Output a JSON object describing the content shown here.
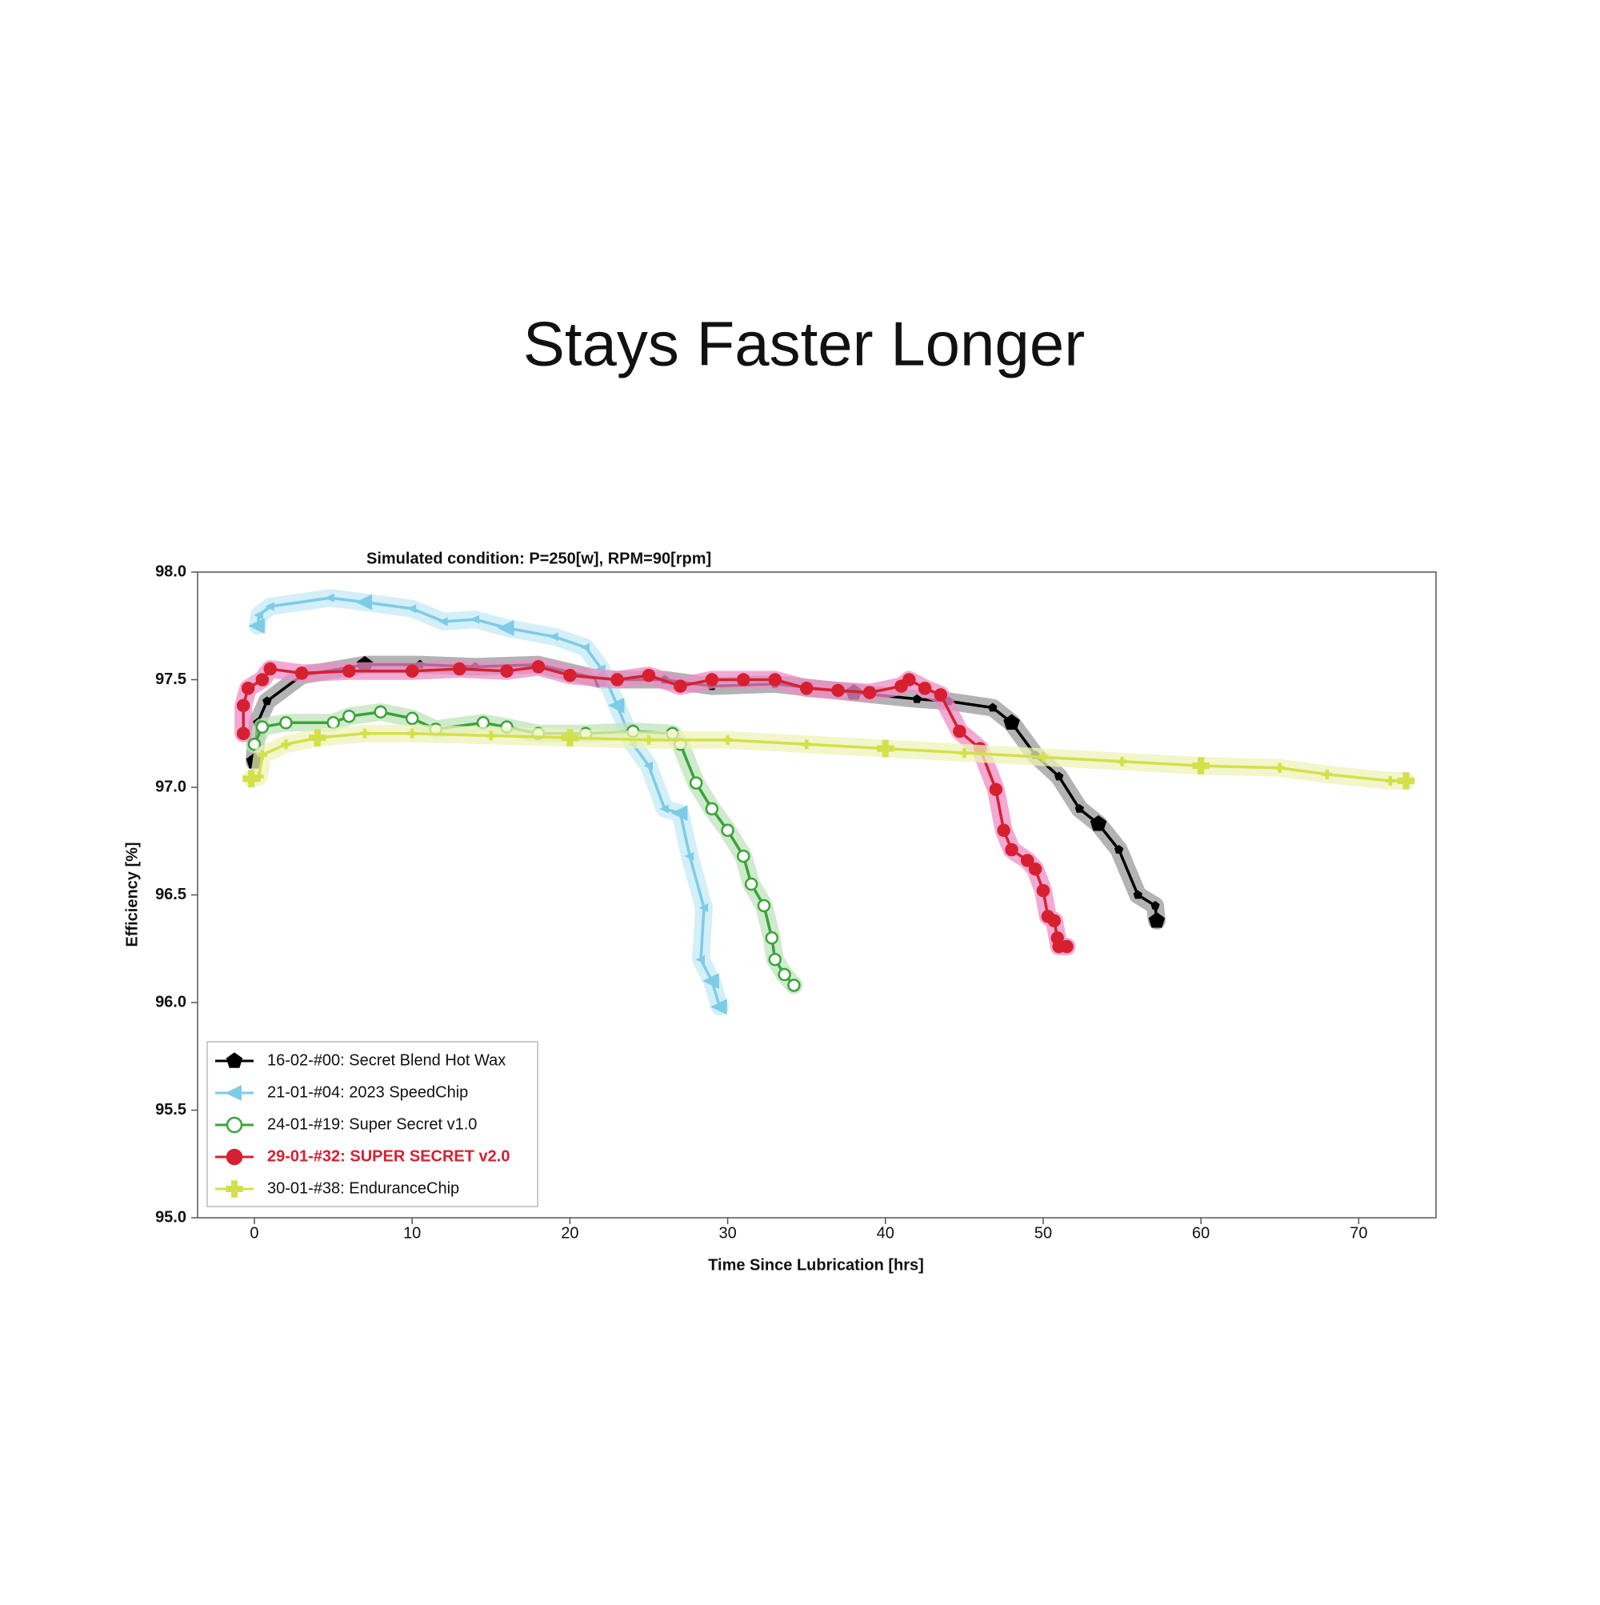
{
  "chart_data": {
    "type": "line",
    "title": "Stays Faster Longer",
    "subtitle": "Simulated condition: P=250[w], RPM=90[rpm]",
    "x_label": "Time Since Lubrication [hrs]",
    "y_label": "Efficiency [%]",
    "xlim": [
      -3.6,
      74.9
    ],
    "ylim": [
      95.0,
      98.0
    ],
    "xticks": [
      0,
      10,
      20,
      30,
      40,
      50,
      60,
      70
    ],
    "yticks": [
      {
        "value": 95.0,
        "label": "95.0"
      },
      {
        "value": 95.5,
        "label": "95.5"
      },
      {
        "value": 96.0,
        "label": "96.0"
      },
      {
        "value": 96.5,
        "label": "96.5"
      },
      {
        "value": 97.0,
        "label": "97.0"
      },
      {
        "value": 97.5,
        "label": "97.5"
      },
      {
        "value": 98.0,
        "label": "98.0"
      }
    ],
    "legend": "lower left",
    "series": [
      {
        "name": "16-02-#00: Secret Blend Hot Wax",
        "color": "#000000",
        "glow": "#9a9a9a",
        "marker": "pentagon",
        "x": [
          0,
          0.2,
          0.8,
          3,
          7,
          10.5,
          14,
          18,
          22,
          26,
          29,
          33,
          38,
          42,
          44,
          46.8,
          48,
          49.5,
          51,
          52.3,
          53.5,
          54.8,
          56,
          57.1,
          57.2
        ],
        "values": [
          97.12,
          97.3,
          97.4,
          97.52,
          97.57,
          97.57,
          97.56,
          97.57,
          97.5,
          97.5,
          97.47,
          97.48,
          97.44,
          97.41,
          97.4,
          97.37,
          97.3,
          97.15,
          97.05,
          96.9,
          96.83,
          96.71,
          96.5,
          96.45,
          96.38
        ]
      },
      {
        "name": "21-01-#04: 2023 SpeedChip",
        "color": "#7ecbe6",
        "glow": "#c4e9f4",
        "marker": "triangle-left",
        "x": [
          0.2,
          0.3,
          1,
          4.8,
          7,
          10,
          12,
          14,
          16,
          19,
          21,
          22,
          23,
          24,
          25,
          26,
          27,
          27.6,
          28.5,
          28.3,
          29,
          29.5
        ],
        "values": [
          97.75,
          97.8,
          97.84,
          97.88,
          97.86,
          97.83,
          97.77,
          97.78,
          97.74,
          97.7,
          97.65,
          97.55,
          97.38,
          97.2,
          97.1,
          96.9,
          96.88,
          96.68,
          96.44,
          96.2,
          96.1,
          95.98
        ]
      },
      {
        "name": "24-01-#19: Super Secret v1.0",
        "color": "#3aa33a",
        "glow": "#bfe3bb",
        "marker": "open-circle",
        "x": [
          0,
          0.5,
          2,
          5,
          6,
          8,
          10,
          11.5,
          14.5,
          16,
          18,
          21,
          24,
          26.5,
          27,
          28,
          29,
          30,
          31,
          31.5,
          32.3,
          32.8,
          33,
          33.6,
          34.2
        ],
        "values": [
          97.2,
          97.28,
          97.3,
          97.3,
          97.33,
          97.35,
          97.32,
          97.27,
          97.3,
          97.28,
          97.25,
          97.25,
          97.26,
          97.25,
          97.2,
          97.02,
          96.9,
          96.8,
          96.68,
          96.55,
          96.45,
          96.3,
          96.2,
          96.13,
          96.08
        ]
      },
      {
        "name": "29-01-#32: SUPER SECRET v2.0",
        "color": "#d62030",
        "glow": "#ee8cc4",
        "marker": "circle",
        "bold": true,
        "x": [
          -0.7,
          -0.7,
          -0.4,
          0.5,
          1,
          3,
          6,
          10,
          13,
          16,
          18,
          20,
          23,
          25,
          27,
          29,
          31,
          33,
          35,
          37,
          39,
          41,
          41.5,
          42.5,
          43.5,
          44.7,
          46,
          47,
          47.5,
          48,
          49,
          49.5,
          50,
          50.3,
          50.7,
          50.9,
          51,
          51.5
        ],
        "values": [
          97.25,
          97.38,
          97.46,
          97.5,
          97.55,
          97.53,
          97.54,
          97.54,
          97.55,
          97.54,
          97.56,
          97.52,
          97.5,
          97.52,
          97.47,
          97.5,
          97.5,
          97.5,
          97.46,
          97.45,
          97.44,
          97.47,
          97.5,
          97.46,
          97.43,
          97.26,
          97.18,
          96.99,
          96.8,
          96.71,
          96.66,
          96.62,
          96.52,
          96.4,
          96.38,
          96.3,
          96.26,
          96.26
        ]
      },
      {
        "name": "30-01-#38: EnduranceChip",
        "color": "#d4e04a",
        "glow": "#eef3b8",
        "marker": "plus",
        "x": [
          -0.2,
          0.3,
          0.5,
          2,
          4,
          7,
          10,
          15,
          20,
          25,
          30,
          35,
          40,
          45,
          50,
          55,
          60,
          65,
          68,
          72,
          73
        ],
        "values": [
          97.04,
          97.05,
          97.15,
          97.2,
          97.23,
          97.25,
          97.25,
          97.24,
          97.23,
          97.22,
          97.22,
          97.2,
          97.18,
          97.16,
          97.14,
          97.12,
          97.1,
          97.09,
          97.06,
          97.03,
          97.03
        ]
      }
    ]
  }
}
